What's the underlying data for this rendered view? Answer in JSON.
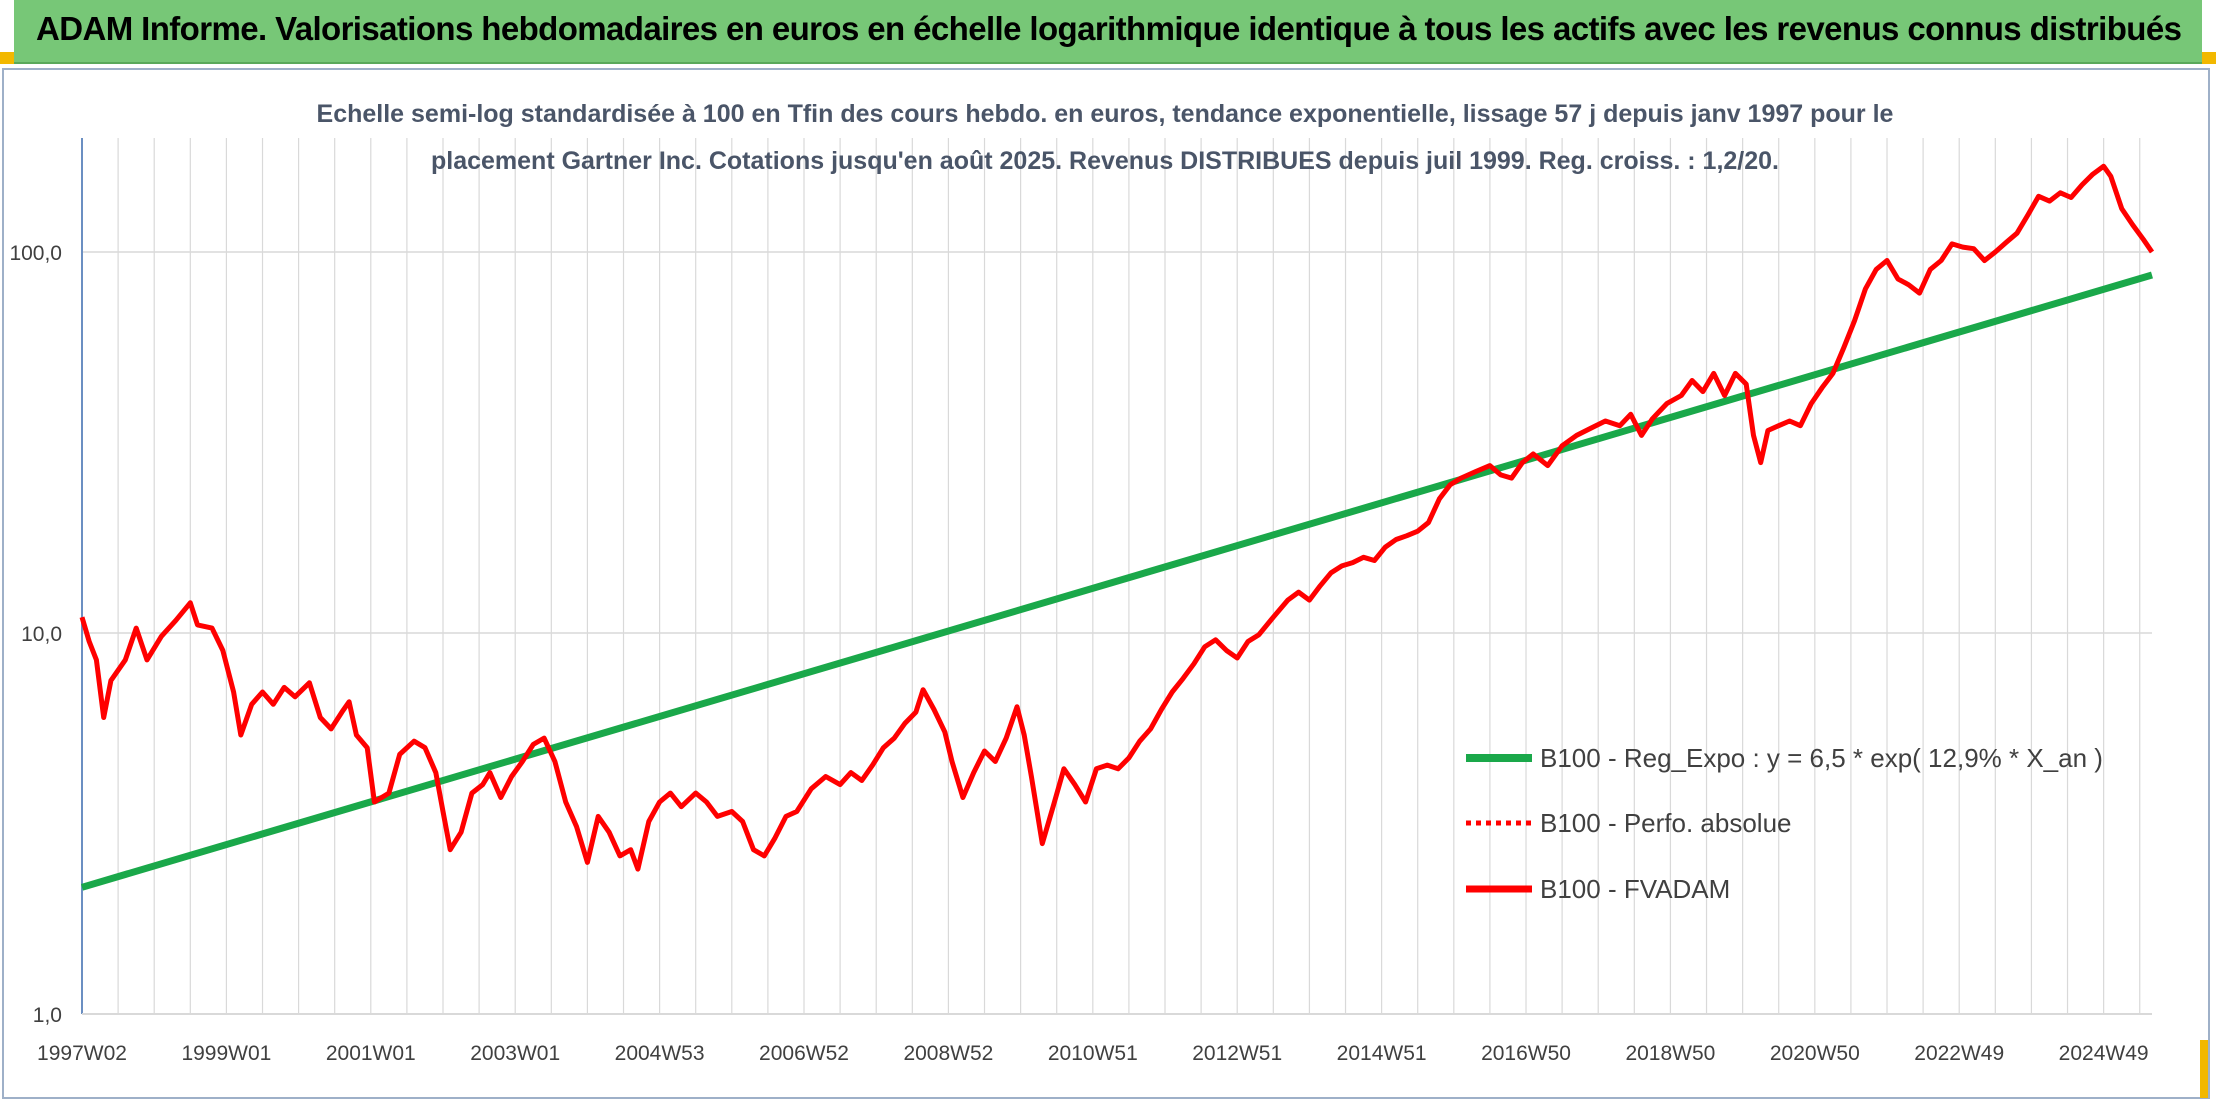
{
  "header": {
    "title": "ADAM Informe. Valorisations hebdomadaires en euros en échelle logarithmique identique à tous les actifs avec les revenus connus distribués"
  },
  "colors": {
    "banner": "#77c777",
    "corner_accent": "#f2b800",
    "trend_line": "#1aa84a",
    "perf_line": "#ff0000",
    "fvadam_line": "#ff0000",
    "grid": "#d9d9d9"
  },
  "chart_data": {
    "type": "line",
    "title_lines": [
      "Echelle semi-log standardisée à 100 en Tfin des cours hebdo. en euros, tendance exponentielle, lissage 57 j depuis janv 1997 pour le",
      "placement Gartner Inc. Cotations jusqu'en août 2025. Revenus DISTRIBUES depuis juil 1999. Reg. croiss. : 1,2/20."
    ],
    "x_scale": "time (years)",
    "x_range": [
      1997.0,
      2025.67
    ],
    "x_ticks": [
      {
        "label": "1997W02",
        "x": 1997.0
      },
      {
        "label": "1999W01",
        "x": 1999.0
      },
      {
        "label": "2001W01",
        "x": 2001.0
      },
      {
        "label": "2003W01",
        "x": 2003.0
      },
      {
        "label": "2004W53",
        "x": 2005.0
      },
      {
        "label": "2006W52",
        "x": 2007.0
      },
      {
        "label": "2008W52",
        "x": 2009.0
      },
      {
        "label": "2010W51",
        "x": 2011.0
      },
      {
        "label": "2012W51",
        "x": 2013.0
      },
      {
        "label": "2014W51",
        "x": 2015.0
      },
      {
        "label": "2016W50",
        "x": 2017.0
      },
      {
        "label": "2018W50",
        "x": 2019.0
      },
      {
        "label": "2020W50",
        "x": 2021.0
      },
      {
        "label": "2022W49",
        "x": 2023.0
      },
      {
        "label": "2024W49",
        "x": 2025.0
      }
    ],
    "y_scale": "log",
    "y_range": [
      1,
      200
    ],
    "y_ticks": [
      {
        "label": "1,0",
        "value": 1
      },
      {
        "label": "10,0",
        "value": 10
      },
      {
        "label": "100,0",
        "value": 100
      }
    ],
    "grid": "vertical lines every half year, horizontal lines at decades",
    "legend_position": "lower-right",
    "series": [
      {
        "name": "B100 - Reg_Expo : y = 6,5 * exp( 12,9% *  X_an )",
        "style": "solid-green-thick",
        "points": [
          [
            1997.0,
            2.15
          ],
          [
            2025.67,
            87.0
          ]
        ]
      },
      {
        "name": "B100 - Perfo. absolue",
        "style": "dotted-red",
        "points": []
      },
      {
        "name": "B100 - FVADAM",
        "style": "solid-red-thick",
        "points": [
          [
            1997.0,
            11.0
          ],
          [
            1997.1,
            9.5
          ],
          [
            1997.2,
            8.5
          ],
          [
            1997.3,
            6.0
          ],
          [
            1997.4,
            7.5
          ],
          [
            1997.6,
            8.5
          ],
          [
            1997.75,
            10.3
          ],
          [
            1997.9,
            8.5
          ],
          [
            1998.1,
            9.8
          ],
          [
            1998.3,
            10.8
          ],
          [
            1998.5,
            12.0
          ],
          [
            1998.6,
            10.5
          ],
          [
            1998.8,
            10.3
          ],
          [
            1998.95,
            9.0
          ],
          [
            1999.1,
            7.0
          ],
          [
            1999.2,
            5.4
          ],
          [
            1999.35,
            6.5
          ],
          [
            1999.5,
            7.0
          ],
          [
            1999.65,
            6.5
          ],
          [
            1999.8,
            7.2
          ],
          [
            1999.95,
            6.8
          ],
          [
            2000.15,
            7.4
          ],
          [
            2000.3,
            6.0
          ],
          [
            2000.45,
            5.6
          ],
          [
            2000.6,
            6.2
          ],
          [
            2000.7,
            6.6
          ],
          [
            2000.8,
            5.4
          ],
          [
            2000.95,
            5.0
          ],
          [
            2001.05,
            3.6
          ],
          [
            2001.25,
            3.8
          ],
          [
            2001.4,
            4.8
          ],
          [
            2001.6,
            5.2
          ],
          [
            2001.75,
            5.0
          ],
          [
            2001.9,
            4.3
          ],
          [
            2002.0,
            3.4
          ],
          [
            2002.1,
            2.7
          ],
          [
            2002.25,
            3.0
          ],
          [
            2002.4,
            3.8
          ],
          [
            2002.55,
            4.0
          ],
          [
            2002.65,
            4.3
          ],
          [
            2002.8,
            3.7
          ],
          [
            2002.95,
            4.2
          ],
          [
            2003.1,
            4.6
          ],
          [
            2003.25,
            5.1
          ],
          [
            2003.4,
            5.3
          ],
          [
            2003.55,
            4.6
          ],
          [
            2003.7,
            3.6
          ],
          [
            2003.85,
            3.1
          ],
          [
            2004.0,
            2.5
          ],
          [
            2004.15,
            3.3
          ],
          [
            2004.3,
            3.0
          ],
          [
            2004.45,
            2.6
          ],
          [
            2004.6,
            2.7
          ],
          [
            2004.7,
            2.4
          ],
          [
            2004.85,
            3.2
          ],
          [
            2005.0,
            3.6
          ],
          [
            2005.15,
            3.8
          ],
          [
            2005.3,
            3.5
          ],
          [
            2005.5,
            3.8
          ],
          [
            2005.65,
            3.6
          ],
          [
            2005.8,
            3.3
          ],
          [
            2006.0,
            3.4
          ],
          [
            2006.15,
            3.2
          ],
          [
            2006.3,
            2.7
          ],
          [
            2006.45,
            2.6
          ],
          [
            2006.6,
            2.9
          ],
          [
            2006.75,
            3.3
          ],
          [
            2006.9,
            3.4
          ],
          [
            2007.1,
            3.9
          ],
          [
            2007.3,
            4.2
          ],
          [
            2007.5,
            4.0
          ],
          [
            2007.65,
            4.3
          ],
          [
            2007.8,
            4.1
          ],
          [
            2007.95,
            4.5
          ],
          [
            2008.1,
            5.0
          ],
          [
            2008.25,
            5.3
          ],
          [
            2008.4,
            5.8
          ],
          [
            2008.55,
            6.2
          ],
          [
            2008.65,
            7.1
          ],
          [
            2008.8,
            6.3
          ],
          [
            2008.95,
            5.5
          ],
          [
            2009.05,
            4.6
          ],
          [
            2009.2,
            3.7
          ],
          [
            2009.35,
            4.3
          ],
          [
            2009.5,
            4.9
          ],
          [
            2009.65,
            4.6
          ],
          [
            2009.8,
            5.3
          ],
          [
            2009.95,
            6.4
          ],
          [
            2010.05,
            5.4
          ],
          [
            2010.15,
            4.2
          ],
          [
            2010.3,
            2.8
          ],
          [
            2010.45,
            3.5
          ],
          [
            2010.6,
            4.4
          ],
          [
            2010.75,
            4.0
          ],
          [
            2010.9,
            3.6
          ],
          [
            2011.05,
            4.4
          ],
          [
            2011.2,
            4.5
          ],
          [
            2011.35,
            4.4
          ],
          [
            2011.5,
            4.7
          ],
          [
            2011.65,
            5.2
          ],
          [
            2011.8,
            5.6
          ],
          [
            2011.95,
            6.3
          ],
          [
            2012.1,
            7.0
          ],
          [
            2012.25,
            7.6
          ],
          [
            2012.4,
            8.3
          ],
          [
            2012.55,
            9.2
          ],
          [
            2012.7,
            9.6
          ],
          [
            2012.85,
            9.0
          ],
          [
            2013.0,
            8.6
          ],
          [
            2013.15,
            9.5
          ],
          [
            2013.3,
            9.9
          ],
          [
            2013.5,
            11.0
          ],
          [
            2013.7,
            12.2
          ],
          [
            2013.85,
            12.8
          ],
          [
            2014.0,
            12.2
          ],
          [
            2014.15,
            13.3
          ],
          [
            2014.3,
            14.4
          ],
          [
            2014.45,
            15.0
          ],
          [
            2014.6,
            15.3
          ],
          [
            2014.75,
            15.8
          ],
          [
            2014.9,
            15.5
          ],
          [
            2015.05,
            16.8
          ],
          [
            2015.2,
            17.6
          ],
          [
            2015.35,
            18.0
          ],
          [
            2015.5,
            18.5
          ],
          [
            2015.65,
            19.5
          ],
          [
            2015.8,
            22.5
          ],
          [
            2015.95,
            24.5
          ],
          [
            2016.1,
            25.5
          ],
          [
            2016.3,
            26.5
          ],
          [
            2016.5,
            27.5
          ],
          [
            2016.65,
            26.0
          ],
          [
            2016.8,
            25.5
          ],
          [
            2016.95,
            28.0
          ],
          [
            2017.1,
            29.5
          ],
          [
            2017.3,
            27.5
          ],
          [
            2017.5,
            31.0
          ],
          [
            2017.7,
            33.0
          ],
          [
            2017.9,
            34.5
          ],
          [
            2018.1,
            36.0
          ],
          [
            2018.3,
            35.0
          ],
          [
            2018.45,
            37.5
          ],
          [
            2018.6,
            33.0
          ],
          [
            2018.75,
            36.5
          ],
          [
            2018.95,
            40.0
          ],
          [
            2019.15,
            42.0
          ],
          [
            2019.3,
            46.0
          ],
          [
            2019.45,
            43.0
          ],
          [
            2019.6,
            48.0
          ],
          [
            2019.75,
            42.0
          ],
          [
            2019.9,
            48.0
          ],
          [
            2020.05,
            45.0
          ],
          [
            2020.15,
            33.0
          ],
          [
            2020.25,
            28.0
          ],
          [
            2020.35,
            34.0
          ],
          [
            2020.5,
            35.0
          ],
          [
            2020.65,
            36.0
          ],
          [
            2020.8,
            35.0
          ],
          [
            2020.95,
            40.0
          ],
          [
            2021.1,
            44.0
          ],
          [
            2021.25,
            48.0
          ],
          [
            2021.4,
            56.0
          ],
          [
            2021.55,
            66.0
          ],
          [
            2021.7,
            80.0
          ],
          [
            2021.85,
            90.0
          ],
          [
            2022.0,
            95.0
          ],
          [
            2022.15,
            85.0
          ],
          [
            2022.3,
            82.0
          ],
          [
            2022.45,
            78.0
          ],
          [
            2022.6,
            90.0
          ],
          [
            2022.75,
            95.0
          ],
          [
            2022.9,
            105.0
          ],
          [
            2023.05,
            103.0
          ],
          [
            2023.2,
            102.0
          ],
          [
            2023.35,
            95.0
          ],
          [
            2023.5,
            100.0
          ],
          [
            2023.65,
            106.0
          ],
          [
            2023.8,
            112.0
          ],
          [
            2023.95,
            125.0
          ],
          [
            2024.1,
            140.0
          ],
          [
            2024.25,
            136.0
          ],
          [
            2024.4,
            143.0
          ],
          [
            2024.55,
            139.0
          ],
          [
            2024.7,
            150.0
          ],
          [
            2024.85,
            160.0
          ],
          [
            2025.0,
            168.0
          ],
          [
            2025.1,
            158.0
          ],
          [
            2025.25,
            130.0
          ],
          [
            2025.4,
            118.0
          ],
          [
            2025.55,
            108.0
          ],
          [
            2025.67,
            100.0
          ]
        ]
      }
    ]
  }
}
